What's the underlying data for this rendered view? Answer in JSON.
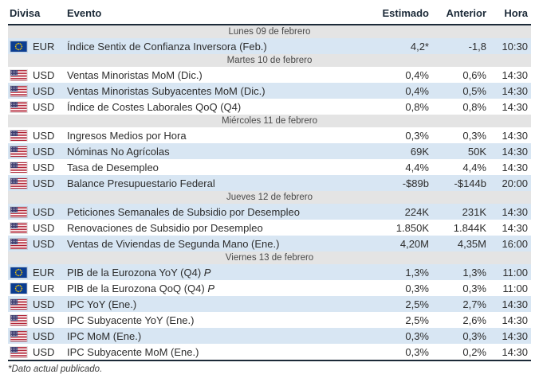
{
  "colors": {
    "shaded_row": "#d8e6f3",
    "day_header_bg": "#e4e4e4",
    "header_text": "#1c2a38",
    "dark_border": "#1c2a38",
    "body_text": "#2d2d2d",
    "eu_flag_blue": "#0b3d91",
    "eu_flag_yellow": "#ffcc00",
    "us_flag_red": "#b22234",
    "us_flag_blue": "#3c3b6e"
  },
  "table": {
    "columns": [
      {
        "key": "currency",
        "label": "Divisa"
      },
      {
        "key": "event",
        "label": "Evento"
      },
      {
        "key": "estimate",
        "label": "Estimado"
      },
      {
        "key": "previous",
        "label": "Anterior"
      },
      {
        "key": "time",
        "label": "Hora"
      }
    ],
    "groups": [
      {
        "day": "Lunes 09 de febrero",
        "rows": [
          {
            "currency": "EUR",
            "event": "Índice Sentix de Confianza Inversora (Feb.)",
            "estimate": "4,2*",
            "previous": "-1,8",
            "time": "10:30",
            "shaded": true
          }
        ]
      },
      {
        "day": "Martes 10 de febrero",
        "rows": [
          {
            "currency": "USD",
            "event": "Ventas Minoristas MoM (Dic.)",
            "estimate": "0,4%",
            "previous": "0,6%",
            "time": "14:30",
            "shaded": false
          },
          {
            "currency": "USD",
            "event": "Ventas Minoristas Subyacentes MoM (Dic.)",
            "estimate": "0,4%",
            "previous": "0,5%",
            "time": "14:30",
            "shaded": true
          },
          {
            "currency": "USD",
            "event": "Índice de Costes Laborales QoQ (Q4)",
            "estimate": "0,8%",
            "previous": "0,8%",
            "time": "14:30",
            "shaded": false
          }
        ]
      },
      {
        "day": "Miércoles 11 de febrero",
        "rows": [
          {
            "currency": "USD",
            "event": "Ingresos Medios por Hora",
            "estimate": "0,3%",
            "previous": "0,3%",
            "time": "14:30",
            "shaded": false
          },
          {
            "currency": "USD",
            "event": "Nóminas No Agrícolas",
            "estimate": "69K",
            "previous": "50K",
            "time": "14:30",
            "shaded": true
          },
          {
            "currency": "USD",
            "event": "Tasa de Desempleo",
            "estimate": "4,4%",
            "previous": "4,4%",
            "time": "14:30",
            "shaded": false
          },
          {
            "currency": "USD",
            "event": "Balance Presupuestario Federal",
            "estimate": "-$89b",
            "previous": "-$144b",
            "time": "20:00",
            "shaded": true
          }
        ]
      },
      {
        "day": "Jueves 12 de febrero",
        "rows": [
          {
            "currency": "USD",
            "event": "Peticiones Semanales de Subsidio por Desempleo",
            "estimate": "224K",
            "previous": "231K",
            "time": "14:30",
            "shaded": true
          },
          {
            "currency": "USD",
            "event": "Renovaciones de Subsidio por Desempleo",
            "estimate": "1.850K",
            "previous": "1.844K",
            "time": "14:30",
            "shaded": false
          },
          {
            "currency": "USD",
            "event": "Ventas de Viviendas de Segunda Mano (Ene.)",
            "estimate": "4,20M",
            "previous": "4,35M",
            "time": "16:00",
            "shaded": true
          }
        ]
      },
      {
        "day": "Viernes 13 de febrero",
        "rows": [
          {
            "currency": "EUR",
            "event": "PIB de la Eurozona YoY (Q4)",
            "suffix": "P",
            "estimate": "1,3%",
            "previous": "1,3%",
            "time": "11:00",
            "shaded": true
          },
          {
            "currency": "EUR",
            "event": "PIB de la Eurozona QoQ (Q4)",
            "suffix": "P",
            "estimate": "0,3%",
            "previous": "0,3%",
            "time": "11:00",
            "shaded": false
          },
          {
            "currency": "USD",
            "event": "IPC YoY (Ene.)",
            "estimate": "2,5%",
            "previous": "2,7%",
            "time": "14:30",
            "shaded": true
          },
          {
            "currency": "USD",
            "event": "IPC Subyacente YoY (Ene.)",
            "estimate": "2,5%",
            "previous": "2,6%",
            "time": "14:30",
            "shaded": false
          },
          {
            "currency": "USD",
            "event": "IPC MoM (Ene.)",
            "estimate": "0,3%",
            "previous": "0,3%",
            "time": "14:30",
            "shaded": true
          },
          {
            "currency": "USD",
            "event": "IPC Subyacente MoM (Ene.)",
            "estimate": "0,3%",
            "previous": "0,2%",
            "time": "14:30",
            "shaded": false
          }
        ]
      }
    ],
    "footnote": "*Dato actual publicado."
  }
}
